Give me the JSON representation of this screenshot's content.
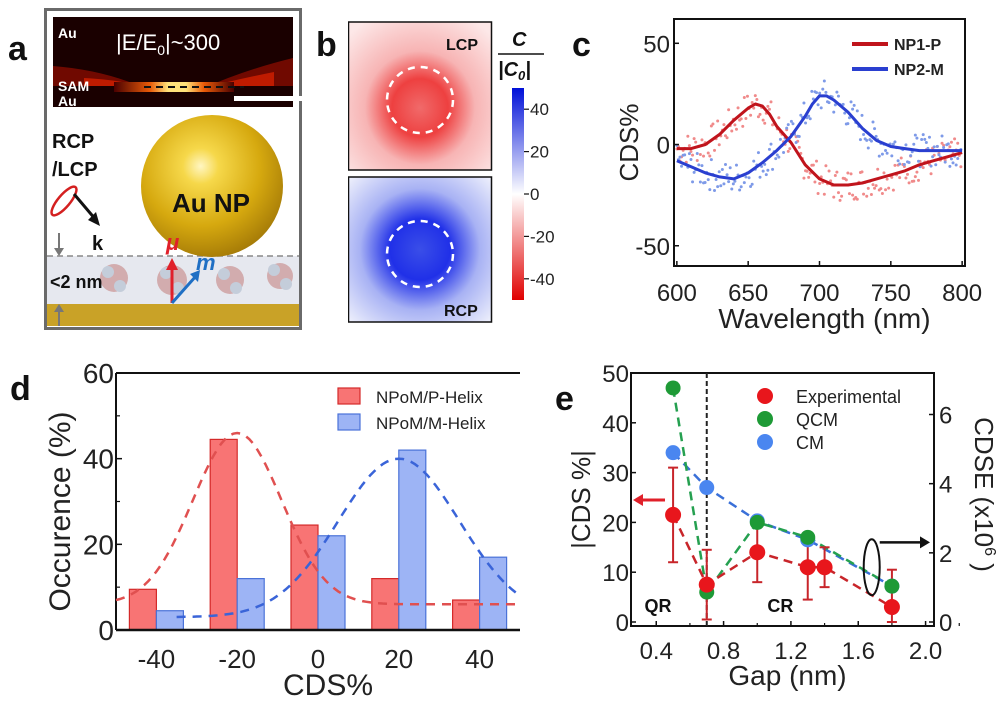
{
  "panel_labels": {
    "a": "a",
    "b": "b",
    "c": "c",
    "d": "d",
    "e": "e"
  },
  "panel_a": {
    "field_map": {
      "top_label": "Au",
      "middle_label": "SAM",
      "bottom_label": "Au",
      "enhancement": "|E/E",
      "enhancement_sub": "0",
      "enhancement_value": "|~300"
    },
    "polarization_label_1": "RCP",
    "polarization_label_2": "/LCP",
    "particle_label": "Au NP",
    "wavevector_label": "k",
    "electric_dipole_label": "μ",
    "magnetic_dipole_label": "m",
    "gap_label": "<2 nm",
    "colors": {
      "gold": "#c9a227",
      "gap_layer": "#e6e8ef",
      "electric": "#e0202a",
      "magnetic": "#1f6fc4"
    }
  },
  "panel_b": {
    "top_map_label": "LCP",
    "bottom_map_label": "RCP",
    "colorbar_title_num": "C",
    "colorbar_title_den": "|C",
    "colorbar_title_den_sub": "0",
    "colorbar_title_den_end": "|",
    "colorbar_ticks": [
      "40",
      "20",
      "0",
      "-20",
      "-40"
    ],
    "colorbar_range": [
      -50,
      50
    ],
    "colors": {
      "positive": "#1020e0",
      "negative": "#e01010"
    }
  },
  "chart_data": [
    {
      "id": "c",
      "type": "line",
      "title": "",
      "xlabel": "Wavelength (nm)",
      "ylabel": "CDS%",
      "xlim": [
        598,
        802
      ],
      "ylim": [
        -60,
        62
      ],
      "xticks": [
        "600",
        "650",
        "700",
        "750",
        "800"
      ],
      "xtick_values": [
        600,
        650,
        700,
        750,
        800
      ],
      "yticks": [
        "50",
        "0",
        "-50"
      ],
      "ytick_values": [
        50,
        0,
        -50
      ],
      "legend": "top-right",
      "series": [
        {
          "name": "NP1-P",
          "color": "#c0141c",
          "scatter_color": "#f08a8a",
          "x": [
            600,
            610,
            620,
            630,
            640,
            650,
            655,
            660,
            665,
            670,
            680,
            690,
            700,
            710,
            720,
            730,
            740,
            750,
            760,
            770,
            780,
            790,
            800
          ],
          "y": [
            -2,
            -2,
            0,
            5,
            12,
            18,
            20,
            19,
            15,
            9,
            1,
            -10,
            -17,
            -20,
            -20,
            -19,
            -17,
            -15,
            -13,
            -10,
            -8,
            -6,
            -4
          ]
        },
        {
          "name": "NP2-M",
          "color": "#2a3fd0",
          "scatter_color": "#7e9ae8",
          "x": [
            600,
            610,
            620,
            630,
            640,
            650,
            660,
            670,
            680,
            690,
            695,
            700,
            705,
            710,
            720,
            730,
            740,
            750,
            760,
            770,
            780,
            790,
            800
          ],
          "y": [
            -8,
            -11,
            -14,
            -16,
            -17,
            -14,
            -9,
            -3,
            4,
            14,
            20,
            24,
            24,
            22,
            16,
            8,
            2,
            -1,
            -2,
            -3,
            -3,
            -3,
            -3
          ]
        }
      ]
    },
    {
      "id": "d",
      "type": "bar",
      "title": "",
      "xlabel": "CDS%",
      "ylabel": "Occurence (%)",
      "categories": [
        "-40",
        "-20",
        "0",
        "20",
        "40"
      ],
      "category_values": [
        -40,
        -20,
        0,
        20,
        40
      ],
      "xlim": [
        -50,
        50
      ],
      "ylim": [
        0,
        60
      ],
      "yticks": [
        "60",
        "40",
        "20",
        "0"
      ],
      "ytick_values": [
        60,
        40,
        20,
        0
      ],
      "legend": "top-right",
      "series": [
        {
          "name": "NPoM/P-Helix",
          "color": "#f87474",
          "edge": "#d42a2a",
          "values": [
            9.5,
            44.5,
            24.5,
            12,
            7
          ],
          "fit": {
            "mean": -20,
            "sigma": 11,
            "amplitude": 40,
            "offset": 6,
            "color": "#e05050"
          }
        },
        {
          "name": "NPoM/M-Helix",
          "color": "#9db4f5",
          "edge": "#4a72d8",
          "values": [
            4.5,
            12,
            22,
            42,
            17
          ],
          "fit": {
            "mean": 20,
            "sigma": 15,
            "amplitude": 37,
            "offset": 3,
            "color": "#3a64d8"
          }
        }
      ]
    },
    {
      "id": "e",
      "type": "scatter",
      "title": "",
      "xlabel": "Gap (nm)",
      "ylabel": "|CDS %|",
      "ylabel_right": "CDSE (x10",
      "ylabel_right_sup": "6",
      "ylabel_right_end": " )",
      "xlim": [
        0.25,
        2.05
      ],
      "ylim": [
        0,
        50
      ],
      "ylim_right": [
        0,
        7.2
      ],
      "xticks": [
        "0.4",
        "0.8",
        "1.2",
        "1.6",
        "2.0"
      ],
      "xtick_values": [
        0.4,
        0.8,
        1.2,
        1.6,
        2.0
      ],
      "yticks": [
        "50",
        "40",
        "30",
        "20",
        "10",
        "0"
      ],
      "ytick_values": [
        50,
        40,
        30,
        20,
        10,
        0
      ],
      "yticks_right": [
        "6",
        "4",
        "2",
        "0"
      ],
      "ytick_values_right": [
        6,
        4,
        2,
        0
      ],
      "divider_x": 0.7,
      "region_labels": [
        "QR",
        "CR"
      ],
      "legend": "top-right",
      "series": [
        {
          "name": "Experimental",
          "color": "#e8161c",
          "line_color": "#c8252a",
          "axis": "left",
          "x": [
            0.5,
            0.7,
            1.0,
            1.3,
            1.4,
            1.8
          ],
          "y": [
            21.5,
            7.5,
            14,
            11,
            11,
            3
          ],
          "err": [
            9.5,
            7,
            6,
            6.5,
            4,
            7.5
          ]
        },
        {
          "name": "QCM",
          "color": "#1e9a36",
          "line_color": "#25a050",
          "axis": "left",
          "x": [
            0.5,
            0.7,
            1.0,
            1.3,
            1.8
          ],
          "y": [
            47,
            6,
            20,
            17,
            7.2
          ]
        },
        {
          "name": "CM",
          "color": "#4a86f0",
          "line_color": "#3a70d8",
          "axis": "left",
          "x": [
            0.5,
            0.7,
            1.0,
            1.3,
            1.8
          ],
          "y": [
            34,
            27,
            20.3,
            16.5,
            7.2
          ]
        }
      ]
    }
  ]
}
